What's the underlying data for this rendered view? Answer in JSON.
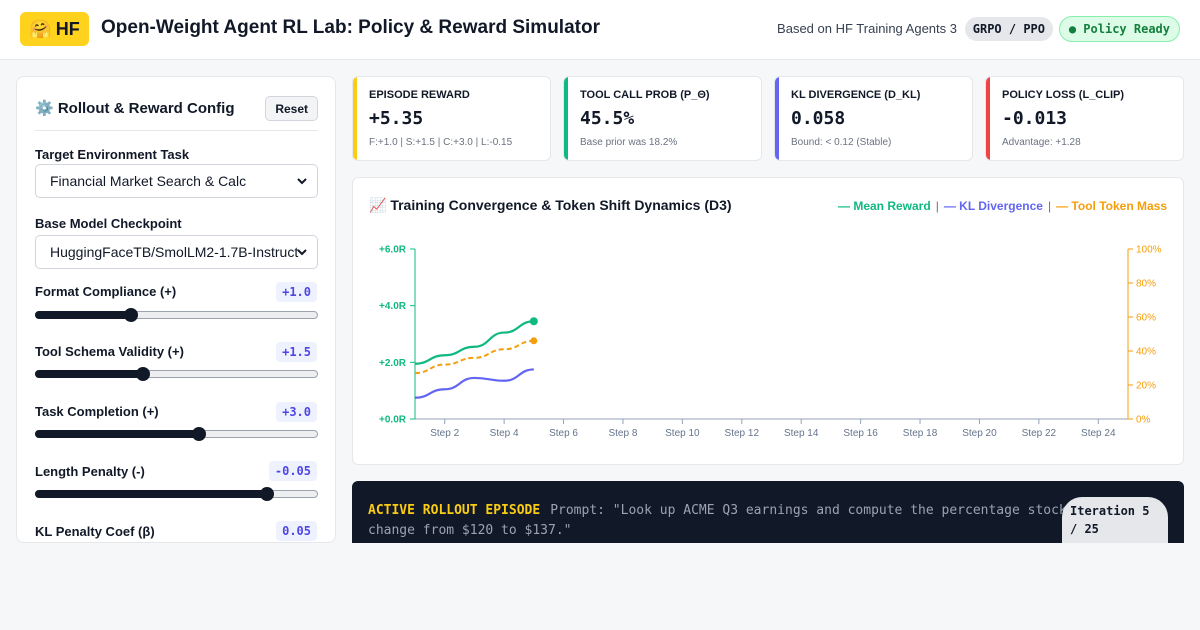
{
  "header": {
    "logo_emoji": "🤗",
    "logo_text": "HF",
    "title": "Open-Weight Agent RL Lab: Policy & Reward Simulator",
    "based_on": "Based on HF Training Agents 3",
    "algo_badge": "GRPO / PPO",
    "status_badge": "● Policy Ready"
  },
  "sidebar": {
    "title": "⚙️ Rollout & Reward Config",
    "reset_label": "Reset",
    "task": {
      "label": "Target Environment Task",
      "value": "Financial Market Search & Calc"
    },
    "model": {
      "label": "Base Model Checkpoint",
      "value": "HuggingFaceTB/SmolLM2-1.7B-Instruct"
    },
    "sliders": [
      {
        "label": "Format Compliance (+)",
        "value": "+1.0",
        "level": 0.34
      },
      {
        "label": "Tool Schema Validity (+)",
        "value": "+1.5",
        "level": 0.38
      },
      {
        "label": "Task Completion (+)",
        "value": "+3.0",
        "level": 0.58
      },
      {
        "label": "Length Penalty (-)",
        "value": "-0.05",
        "level": 0.82
      },
      {
        "label": "KL Penalty Coef (β)",
        "value": "0.05",
        "level": null
      }
    ]
  },
  "metrics": [
    {
      "label": "Episode Reward",
      "value": "+5.35",
      "sub": "F:+1.0 | S:+1.5 | C:+3.0 | L:-0.15",
      "color": "#facc15"
    },
    {
      "label": "Tool Call Prob (P_θ)",
      "value": "45.5%",
      "sub": "Base prior was 18.2%",
      "color": "#10b981"
    },
    {
      "label": "KL Divergence (D_KL)",
      "value": "0.058",
      "sub": "Bound: < 0.12 (Stable)",
      "color": "#6366f1"
    },
    {
      "label": "Policy Loss (L_clip)",
      "value": "-0.013",
      "sub": "Advantage: +1.28",
      "color": "#ef4444"
    }
  ],
  "chart": {
    "title": "📈 Training Convergence & Token Shift Dynamics (D3)",
    "legend": [
      {
        "label": "— Mean Reward",
        "color": "#10b981"
      },
      {
        "label": "— KL Divergence",
        "color": "#6366f1"
      },
      {
        "label": "— Tool Token Mass",
        "color": "#f59e0b"
      }
    ]
  },
  "chart_data": {
    "type": "line",
    "x_ticks": [
      "Step 2",
      "Step 4",
      "Step 6",
      "Step 8",
      "Step 10",
      "Step 12",
      "Step 14",
      "Step 16",
      "Step 18",
      "Step 20",
      "Step 22",
      "Step 24"
    ],
    "xlim": [
      1,
      25
    ],
    "y_left_ticks": [
      "+0.0R",
      "+2.0R",
      "+4.0R",
      "+6.0R"
    ],
    "y_left_lim": [
      0,
      6
    ],
    "y_right_ticks": [
      "0%",
      "20%",
      "40%",
      "60%",
      "80%",
      "100%"
    ],
    "y_right_lim": [
      0,
      100
    ],
    "grid": false,
    "series": [
      {
        "name": "Mean Reward",
        "axis": "left",
        "color": "#10b981",
        "dashed": false,
        "x": [
          1,
          2,
          3,
          4,
          5
        ],
        "y": [
          1.95,
          2.25,
          2.55,
          3.05,
          3.45
        ]
      },
      {
        "name": "Tool Token Mass",
        "axis": "right",
        "color": "#f59e0b",
        "dashed": true,
        "x": [
          1,
          2,
          3,
          4,
          5
        ],
        "y": [
          27,
          32,
          36,
          41,
          46
        ]
      },
      {
        "name": "KL Divergence",
        "axis": "left",
        "color": "#6366f1",
        "dashed": false,
        "x": [
          1,
          2,
          3,
          4,
          5
        ],
        "y": [
          0.75,
          1.05,
          1.45,
          1.35,
          1.75
        ]
      }
    ]
  },
  "console": {
    "heading": "ACTIVE ROLLOUT EPISODE",
    "prompt": "Prompt: \"Look up ACME Q3 earnings and compute the percentage stock change from $120 to $137.\"",
    "iteration": "Iteration 5 / 25"
  }
}
